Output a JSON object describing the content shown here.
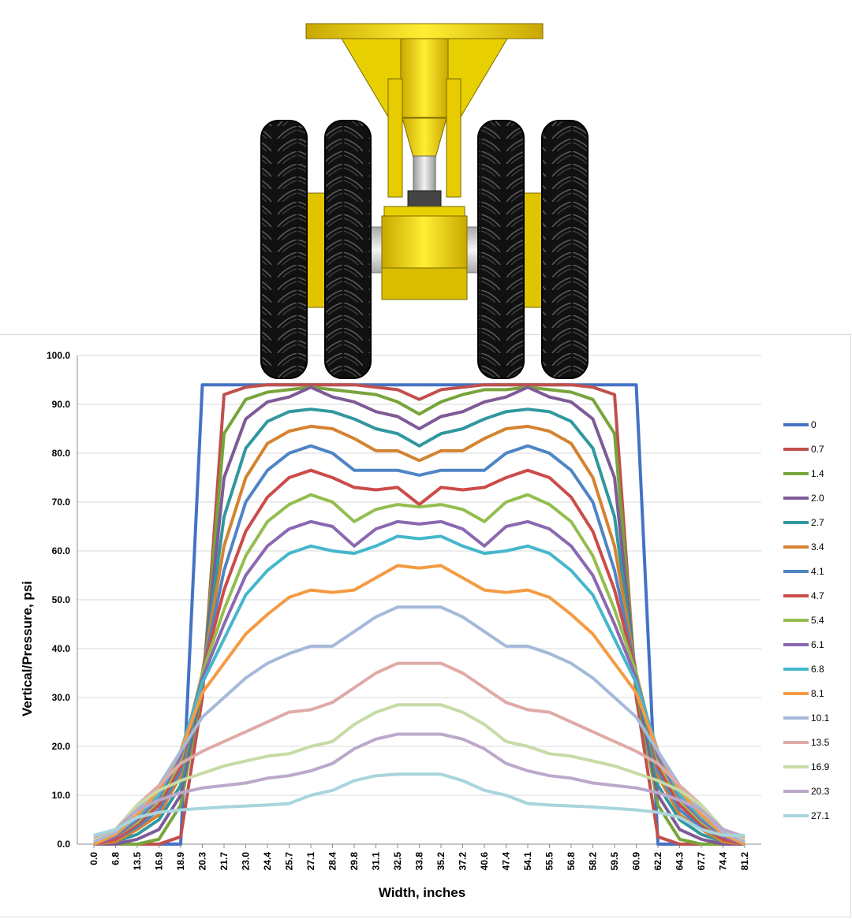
{
  "chart_data": {
    "type": "line",
    "title": "",
    "xlabel": "Width, inches",
    "ylabel": "Vertical/Pressure, psi",
    "ylim": [
      0,
      100
    ],
    "yticks": [
      "0.0",
      "10.0",
      "20.0",
      "30.0",
      "40.0",
      "50.0",
      "60.0",
      "70.0",
      "80.0",
      "90.0",
      "100.0"
    ],
    "grid": true,
    "legend": "right",
    "categories": [
      "0.0",
      "6.8",
      "13.5",
      "16.9",
      "18.9",
      "20.3",
      "21.7",
      "23.0",
      "24.4",
      "25.7",
      "27.1",
      "28.4",
      "29.8",
      "31.1",
      "32.5",
      "33.8",
      "35.2",
      "37.2",
      "40.6",
      "47.4",
      "54.1",
      "55.5",
      "56.8",
      "58.2",
      "59.5",
      "60.9",
      "62.2",
      "64.3",
      "67.7",
      "74.4",
      "81.2"
    ],
    "series": [
      {
        "name": "0",
        "color": "#4472C4",
        "values": [
          0,
          0,
          0,
          0,
          0,
          94,
          94,
          94,
          94,
          94,
          94,
          94,
          94,
          94,
          94,
          94,
          94,
          94,
          94,
          94,
          94,
          94,
          94,
          94,
          94,
          94,
          0,
          0,
          0,
          0,
          0
        ]
      },
      {
        "name": "0.7",
        "color": "#C0504D",
        "values": [
          0,
          0,
          0,
          0,
          1.5,
          30,
          92,
          93.5,
          94,
          94,
          94,
          94,
          94,
          93.5,
          93,
          91,
          93,
          93.5,
          94,
          94,
          94,
          94,
          94,
          93.5,
          92,
          30,
          1.5,
          0,
          0,
          0,
          0
        ]
      },
      {
        "name": "1.4",
        "color": "#77A43B",
        "values": [
          0,
          0,
          0,
          1,
          8,
          32,
          84,
          91,
          92.5,
          93,
          93.5,
          93,
          92.5,
          92,
          90.5,
          88,
          90.5,
          92,
          93,
          93,
          93.5,
          93,
          92.5,
          91,
          84,
          32,
          8,
          1,
          0,
          0,
          0
        ]
      },
      {
        "name": "2.0",
        "color": "#7E5A96",
        "values": [
          0,
          0,
          1,
          3,
          10,
          33,
          75,
          87,
          90.5,
          91.5,
          93.5,
          91.5,
          90.5,
          88.5,
          87.5,
          85,
          87.5,
          88.5,
          90.5,
          91.5,
          93.5,
          91.5,
          90.5,
          87,
          75,
          33,
          10,
          3,
          1,
          0,
          0
        ]
      },
      {
        "name": "2.7",
        "color": "#31979F",
        "values": [
          0,
          0.5,
          2,
          5,
          12,
          34,
          67,
          81,
          86.5,
          88.5,
          89,
          88.5,
          87,
          85,
          84,
          81.5,
          84,
          85,
          87,
          88.5,
          89,
          88.5,
          86.5,
          81,
          67,
          34,
          12,
          5,
          2,
          0.5,
          0
        ]
      },
      {
        "name": "3.4",
        "color": "#D48330",
        "values": [
          0,
          0.5,
          3,
          6,
          14,
          35,
          61,
          75,
          82,
          84.5,
          85.5,
          85,
          83,
          80.5,
          80.5,
          78.5,
          80.5,
          80.5,
          83,
          85,
          85.5,
          84.5,
          82,
          75,
          61,
          35,
          14,
          6,
          3,
          0.5,
          0
        ]
      },
      {
        "name": "4.1",
        "color": "#4F85C5",
        "values": [
          0,
          1,
          3.5,
          7,
          15,
          35,
          56,
          70,
          76.5,
          80,
          81.5,
          80,
          76.5,
          76.5,
          76.5,
          75.5,
          76.5,
          76.5,
          76.5,
          80,
          81.5,
          80,
          76.5,
          70,
          56,
          35,
          15,
          7,
          3.5,
          1,
          0
        ]
      },
      {
        "name": "4.7",
        "color": "#CC4B49",
        "values": [
          0,
          1,
          4,
          8,
          16,
          35,
          52,
          64,
          71,
          75,
          76.5,
          75,
          73,
          72.5,
          73,
          69.5,
          73,
          72.5,
          73,
          75,
          76.5,
          75,
          71,
          64,
          52,
          35,
          16,
          8,
          4,
          1,
          0
        ]
      },
      {
        "name": "5.4",
        "color": "#93BE4F",
        "values": [
          0,
          1.5,
          4.5,
          9,
          17,
          35,
          48,
          59,
          66,
          69.5,
          71.5,
          70,
          66,
          68.5,
          69.5,
          69,
          69.5,
          68.5,
          66,
          70,
          71.5,
          69.5,
          66,
          59,
          48,
          35,
          17,
          9,
          4.5,
          1.5,
          0
        ]
      },
      {
        "name": "6.1",
        "color": "#8B68B1",
        "values": [
          0,
          1.5,
          5,
          9.5,
          18,
          34,
          45,
          55,
          61,
          64.5,
          66,
          65,
          61,
          64.5,
          66,
          65.5,
          66,
          64.5,
          61,
          65,
          66,
          64.5,
          61,
          55,
          45,
          34,
          18,
          9.5,
          5,
          1.5,
          0
        ]
      },
      {
        "name": "6.8",
        "color": "#45B7CC",
        "values": [
          0,
          2,
          5.5,
          10,
          19,
          33,
          42,
          51,
          56,
          59.5,
          61,
          60,
          59.5,
          61,
          63,
          62.5,
          63,
          61,
          59.5,
          60,
          61,
          59.5,
          56,
          51,
          42,
          33,
          19,
          10,
          5.5,
          2,
          0
        ]
      },
      {
        "name": "8.1",
        "color": "#F59B43",
        "values": [
          0,
          2,
          6,
          11,
          19,
          31,
          37,
          43,
          47,
          50.5,
          52,
          51.5,
          52,
          54.5,
          57,
          56.5,
          57,
          54.5,
          52,
          51.5,
          52,
          50.5,
          47,
          43,
          37,
          31,
          19,
          11,
          6,
          2,
          0
        ]
      },
      {
        "name": "10.1",
        "color": "#A5B9DA",
        "values": [
          0.5,
          2.5,
          7,
          12,
          19,
          26,
          30,
          34,
          37,
          39,
          40.5,
          40.5,
          43.5,
          46.5,
          48.5,
          48.5,
          48.5,
          46.5,
          43.5,
          40.5,
          40.5,
          39,
          37,
          34,
          30,
          26,
          19,
          12,
          7,
          2.5,
          0.5
        ]
      },
      {
        "name": "13.5",
        "color": "#DFAAA8",
        "values": [
          1,
          3,
          8,
          12,
          16.5,
          19,
          21,
          23,
          25,
          27,
          27.5,
          29,
          32,
          35,
          37,
          37,
          37,
          35,
          32,
          29,
          27.5,
          27,
          25,
          23,
          21,
          19,
          16.5,
          12,
          8,
          3,
          1
        ]
      },
      {
        "name": "16.9",
        "color": "#C6DBA6",
        "values": [
          1.2,
          3,
          8,
          11,
          13,
          14.5,
          16,
          17,
          18,
          18.5,
          20,
          21,
          24.5,
          27,
          28.5,
          28.5,
          28.5,
          27,
          24.5,
          21,
          20,
          18.5,
          18,
          17,
          16,
          14.5,
          13,
          11,
          8,
          3,
          1.2
        ]
      },
      {
        "name": "20.3",
        "color": "#BCA8CA",
        "values": [
          1.5,
          3,
          7,
          9,
          10.5,
          11.5,
          12,
          12.5,
          13.5,
          14,
          15,
          16.5,
          19.5,
          21.5,
          22.5,
          22.5,
          22.5,
          21.5,
          19.5,
          16.5,
          15,
          14,
          13.5,
          12.5,
          12,
          11.5,
          10.5,
          9,
          7,
          3,
          1.5
        ]
      },
      {
        "name": "27.1",
        "color": "#A8D5DC",
        "values": [
          1.8,
          3,
          5.5,
          6.5,
          7,
          7.3,
          7.6,
          7.8,
          8,
          8.3,
          10,
          11,
          13,
          14,
          14.3,
          14.3,
          14.3,
          13,
          11,
          10,
          8.3,
          8,
          7.8,
          7.6,
          7.3,
          7,
          6.5,
          5.5,
          3,
          1.8,
          1.8
        ]
      }
    ]
  }
}
